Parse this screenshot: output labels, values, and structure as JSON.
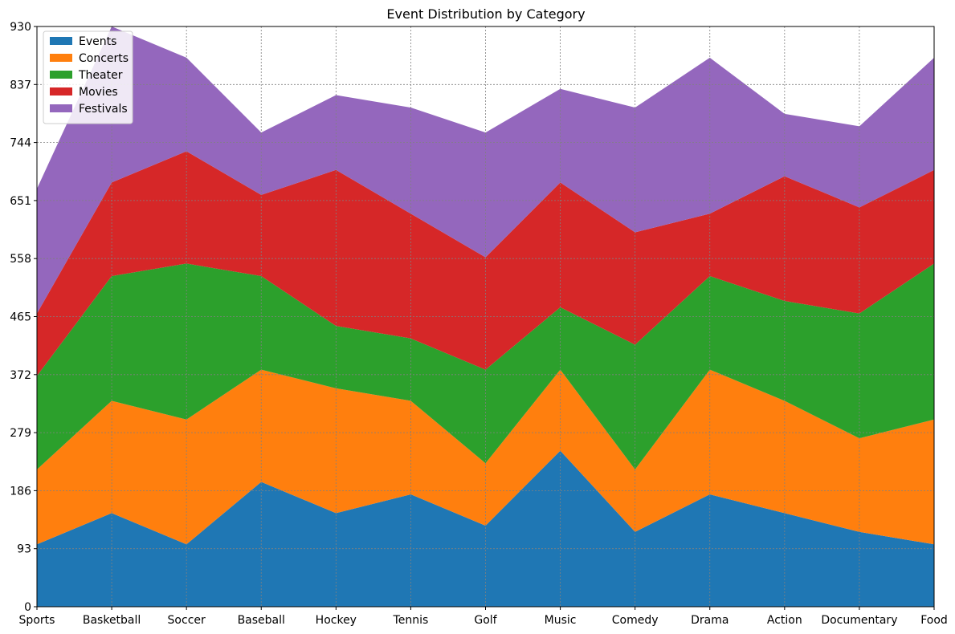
{
  "chart_data": {
    "type": "area",
    "stacked": true,
    "title": "Event Distribution by Category",
    "xlabel": "",
    "ylabel": "",
    "categories": [
      "Sports",
      "Basketball",
      "Soccer",
      "Baseball",
      "Hockey",
      "Tennis",
      "Golf",
      "Music",
      "Comedy",
      "Drama",
      "Action",
      "Documentary",
      "Food"
    ],
    "ylim": [
      0,
      930
    ],
    "yticks": [
      0,
      93,
      186,
      279,
      372,
      465,
      558,
      651,
      744,
      837,
      930
    ],
    "grid": true,
    "legend_position": "top-left",
    "series": [
      {
        "name": "Events",
        "color": "#1f77b4",
        "values": [
          100,
          150,
          100,
          200,
          150,
          180,
          130,
          250,
          120,
          180,
          150,
          120,
          100
        ]
      },
      {
        "name": "Concerts",
        "color": "#ff7f0e",
        "values": [
          120,
          180,
          200,
          180,
          200,
          150,
          100,
          130,
          100,
          200,
          180,
          150,
          200
        ]
      },
      {
        "name": "Theater",
        "color": "#2ca02c",
        "values": [
          150,
          200,
          250,
          150,
          100,
          100,
          150,
          100,
          200,
          150,
          160,
          200,
          250
        ]
      },
      {
        "name": "Movies",
        "color": "#d62728",
        "values": [
          100,
          150,
          180,
          130,
          250,
          200,
          180,
          200,
          180,
          100,
          200,
          170,
          150
        ]
      },
      {
        "name": "Festivals",
        "color": "#9467bd",
        "values": [
          200,
          250,
          150,
          100,
          120,
          170,
          200,
          150,
          200,
          250,
          100,
          130,
          180
        ]
      }
    ]
  }
}
